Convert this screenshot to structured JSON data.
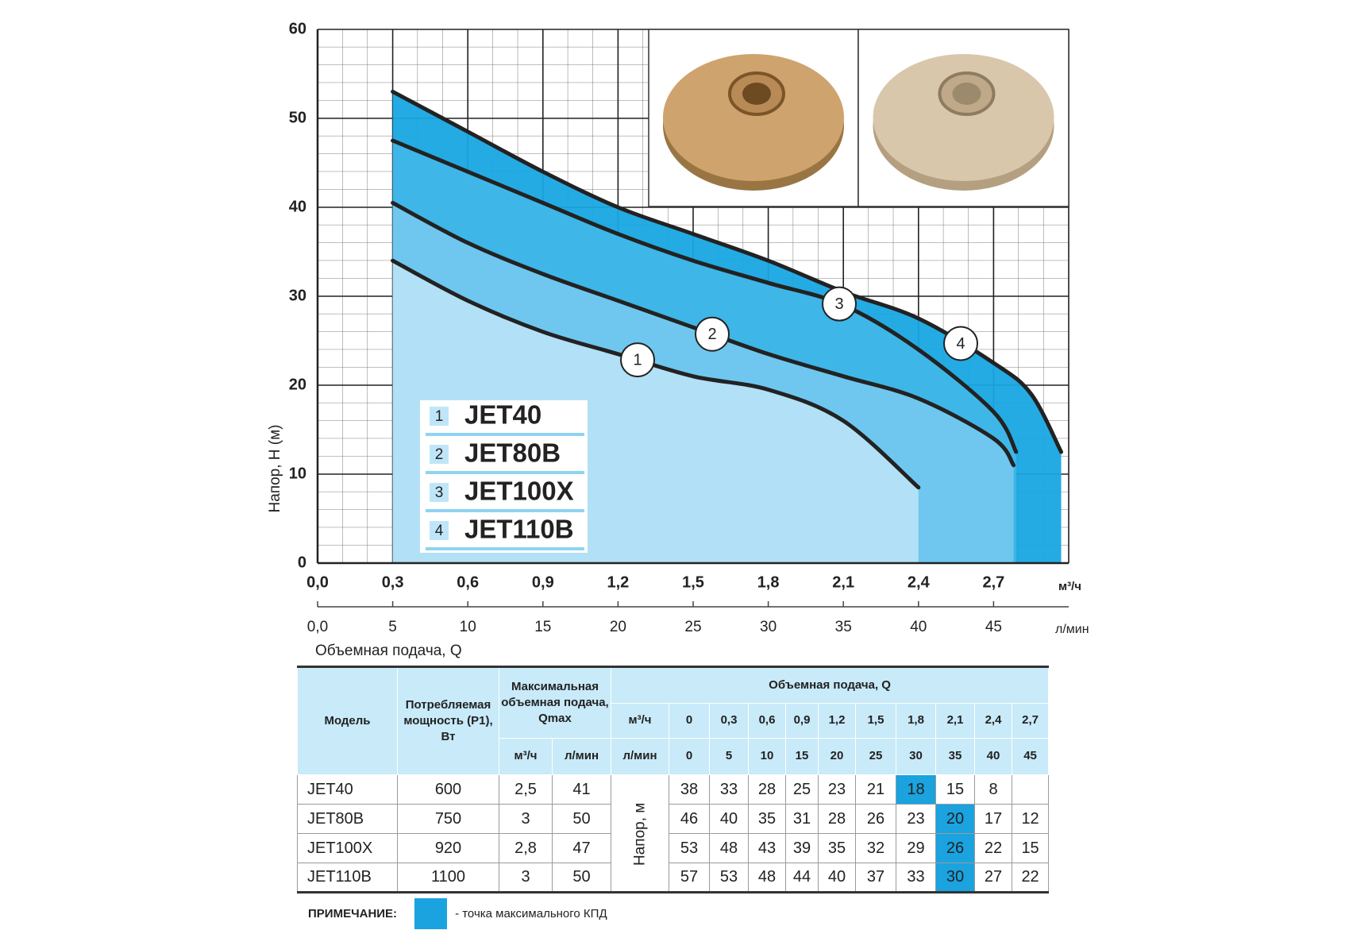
{
  "chart_data": {
    "type": "line",
    "y_label": "Напор, Н (м)",
    "x_label": "Объемная подача, Q",
    "x_unit": "м³/ч",
    "x2_unit": "л/мин",
    "xlim": [
      0,
      3
    ],
    "ylim": [
      0,
      60
    ],
    "x2lim": [
      0,
      50
    ],
    "xticks": [
      {
        "value": 0,
        "label": "0,0"
      },
      {
        "value": 0.3,
        "label": "0,3"
      },
      {
        "value": 0.6,
        "label": "0,6"
      },
      {
        "value": 0.9,
        "label": "0,9"
      },
      {
        "value": 1.2,
        "label": "1,2"
      },
      {
        "value": 1.5,
        "label": "1,5"
      },
      {
        "value": 1.8,
        "label": "1,8"
      },
      {
        "value": 2.1,
        "label": "2,1"
      },
      {
        "value": 2.4,
        "label": "2,4"
      },
      {
        "value": 2.7,
        "label": "2,7"
      }
    ],
    "x2ticks": [
      {
        "value": 0,
        "label": "0,0"
      },
      5,
      10,
      15,
      20,
      25,
      30,
      35,
      40,
      45
    ],
    "yticks": [
      0,
      10,
      20,
      30,
      40,
      50,
      60
    ],
    "grid": true,
    "series": [
      {
        "name": "JET40",
        "label": "1",
        "color": "#222222",
        "fill": "#b5e1f6",
        "x": [
          0.3,
          0.6,
          0.9,
          1.2,
          1.5,
          1.8,
          2.1,
          2.4
        ],
        "values": [
          34,
          29.5,
          26,
          23.5,
          21,
          19.5,
          16,
          8.5
        ]
      },
      {
        "name": "JET80B",
        "label": "2",
        "color": "#222222",
        "fill": "#72c8ef",
        "x": [
          0.3,
          0.6,
          0.9,
          1.2,
          1.5,
          1.8,
          2.1,
          2.4,
          2.7,
          2.78
        ],
        "values": [
          40.5,
          36,
          32.5,
          29.5,
          26.5,
          23.5,
          21,
          18.5,
          14,
          11
        ]
      },
      {
        "name": "JET100X",
        "label": "3",
        "color": "#222222",
        "fill": "#40b6e7",
        "x": [
          0.3,
          0.6,
          0.9,
          1.2,
          1.5,
          1.8,
          2.1,
          2.4,
          2.7,
          2.79
        ],
        "values": [
          47.5,
          44,
          40.5,
          37,
          34,
          31.5,
          29,
          24,
          17,
          12.5
        ]
      },
      {
        "name": "JET110B",
        "label": "4",
        "color": "#222222",
        "fill": "#18a7e1",
        "x": [
          0.3,
          0.6,
          0.9,
          1.2,
          1.5,
          1.8,
          2.1,
          2.4,
          2.7,
          2.85,
          2.97
        ],
        "values": [
          53,
          48.5,
          44,
          40,
          37,
          34,
          30.5,
          27.5,
          22.5,
          19,
          12.5
        ]
      }
    ]
  },
  "table": {
    "header": {
      "model": "Модель",
      "power": "Потребляемая мощность (P1), Вт",
      "qmax": "Максимальная объемная подача, Qmax",
      "qmax_units": [
        "м³/ч",
        "л/мин"
      ],
      "flow": "Объемная подача, Q",
      "flow_units": [
        "м³/ч",
        "л/мин"
      ],
      "flow_m3h": [
        "0",
        "0,3",
        "0,6",
        "0,9",
        "1,2",
        "1,5",
        "1,8",
        "2,1",
        "2,4",
        "2,7"
      ],
      "flow_lmin": [
        0,
        5,
        10,
        15,
        20,
        25,
        30,
        35,
        40,
        45
      ]
    },
    "head_label": "Напор, м",
    "highlight_color": "#1aa3df",
    "rows": [
      {
        "model": "JET40",
        "power": 600,
        "qmax_m3h": "2,5",
        "qmax_lmin": 41,
        "head": [
          38,
          33,
          28,
          25,
          23,
          21,
          18,
          15,
          8
        ],
        "best": 6
      },
      {
        "model": "JET80B",
        "power": 750,
        "qmax_m3h": 3,
        "qmax_lmin": 50,
        "head": [
          46,
          40,
          35,
          31,
          28,
          26,
          23,
          20,
          17,
          12
        ],
        "best": 7
      },
      {
        "model": "JET100X",
        "power": 920,
        "qmax_m3h": "2,8",
        "qmax_lmin": 47,
        "head": [
          53,
          48,
          43,
          39,
          35,
          32,
          29,
          26,
          22,
          15
        ],
        "best": 7
      },
      {
        "model": "JET110B",
        "power": 1100,
        "qmax_m3h": 3,
        "qmax_lmin": 50,
        "head": [
          57,
          53,
          48,
          44,
          40,
          37,
          33,
          30,
          27,
          22
        ],
        "best": 7
      }
    ]
  },
  "note": {
    "label": "ПРИМЕЧАНИЕ:",
    "text": "- точка максимального КПД"
  }
}
